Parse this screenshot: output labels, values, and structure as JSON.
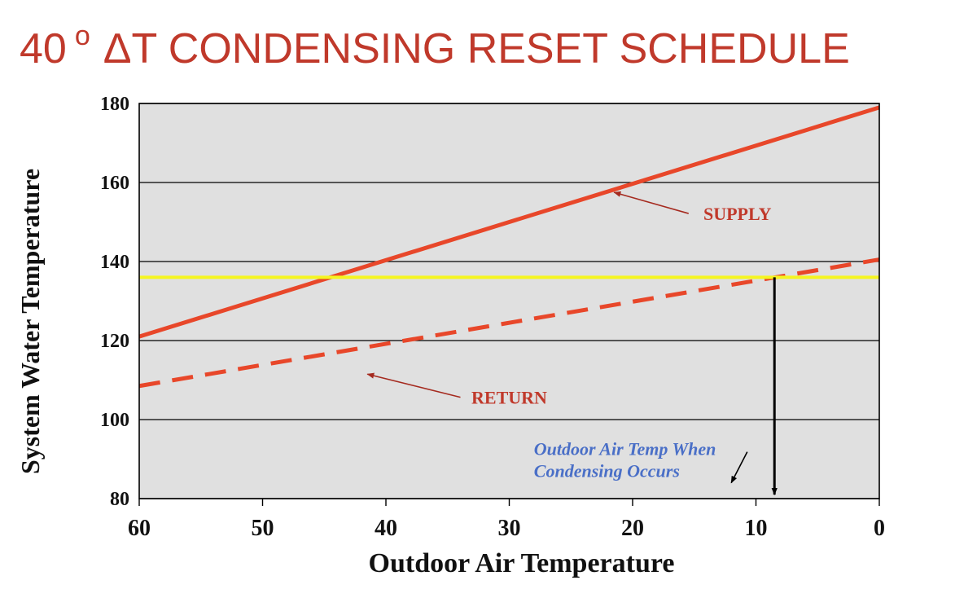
{
  "title": {
    "prefix": "40",
    "degree": "o",
    "rest": "ΔT CONDENSING RESET SCHEDULE",
    "color": "#c0392b"
  },
  "chart_data": {
    "type": "line",
    "xlabel": "Outdoor Air Temperature",
    "ylabel": "System Water Temperature",
    "xlim": [
      60,
      0
    ],
    "ylim": [
      80,
      180
    ],
    "x_ticks": [
      "60",
      "50",
      "40",
      "30",
      "20",
      "10",
      "0"
    ],
    "y_ticks": [
      "180",
      "160",
      "140",
      "120",
      "100",
      "80"
    ],
    "grid": true,
    "plot_background": "#e0e0e0",
    "series": [
      {
        "name": "SUPPLY",
        "style": "solid",
        "color": "#e8472a",
        "x": [
          60,
          0
        ],
        "y": [
          121,
          179
        ]
      },
      {
        "name": "RETURN",
        "style": "dashed",
        "color": "#e8472a",
        "x": [
          60,
          0
        ],
        "y": [
          108.5,
          140.5
        ]
      },
      {
        "name": "",
        "style": "solid",
        "color": "#f5f520",
        "x": [
          60,
          0
        ],
        "y": [
          136,
          136
        ]
      }
    ],
    "annotations": [
      {
        "text": "SUPPLY",
        "color": "#c0392b",
        "x": 11.5,
        "y": 150.5,
        "arrow_to": [
          21.5,
          157.5
        ]
      },
      {
        "text": "RETURN",
        "color": "#c0392b",
        "x": 30,
        "y": 104,
        "arrow_to": [
          41.5,
          111.5
        ]
      },
      {
        "text": "Outdoor Air Temp When",
        "color": "#4a6fc7",
        "x": 28,
        "y": 91,
        "arrow_to": [
          12,
          84
        ]
      },
      {
        "text": "Condensing Occurs",
        "color": "#4a6fc7",
        "x": 28,
        "y": 85.5
      }
    ],
    "condensing_marker": {
      "x": 8.5,
      "y_from": 136,
      "y_to": 81
    }
  }
}
